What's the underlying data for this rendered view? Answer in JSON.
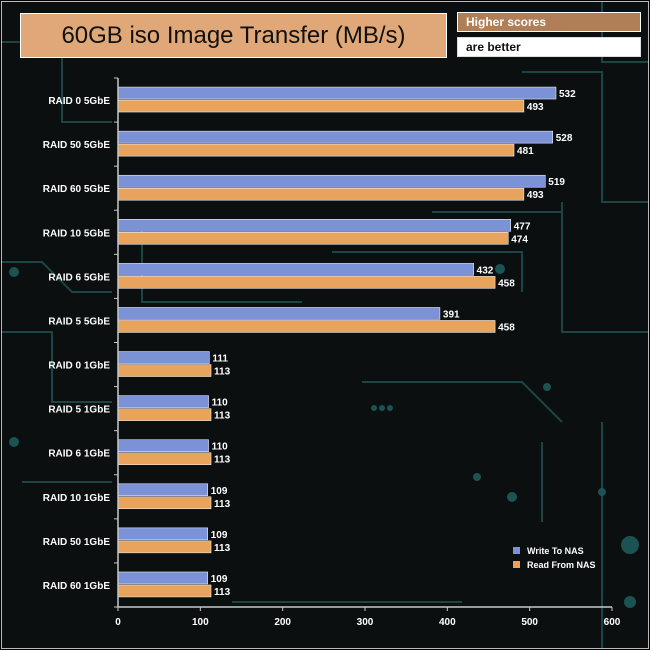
{
  "header": {
    "title": "60GB iso Image Transfer (MB/s)",
    "note_line1": "Higher scores",
    "note_line2": "are better"
  },
  "chart_data": {
    "type": "bar",
    "orientation": "horizontal",
    "title": "60GB iso Image Transfer (MB/s)",
    "categories": [
      "RAID 0 5GbE",
      "RAID 50 5GbE",
      "RAID 60 5GbE",
      "RAID 10 5GbE",
      "RAID 6 5GbE",
      "RAID 5 5GbE",
      "RAID 0 1GbE",
      "RAID 5 1GbE",
      "RAID 6 1GbE",
      "RAID 10 1GbE",
      "RAID 50 1GbE",
      "RAID 60 1GbE"
    ],
    "series": [
      {
        "name": "Write To NAS",
        "color": "#7b93d6",
        "values": [
          532,
          528,
          519,
          477,
          432,
          391,
          111,
          110,
          110,
          109,
          109,
          109
        ]
      },
      {
        "name": "Read From NAS",
        "color": "#e8a35c",
        "values": [
          493,
          481,
          493,
          474,
          458,
          458,
          113,
          113,
          113,
          113,
          113,
          113
        ]
      }
    ],
    "xlim": [
      0,
      600
    ],
    "xticks": [
      0,
      100,
      200,
      300,
      400,
      500,
      600
    ],
    "grid": false,
    "legend": "bottom-right"
  }
}
